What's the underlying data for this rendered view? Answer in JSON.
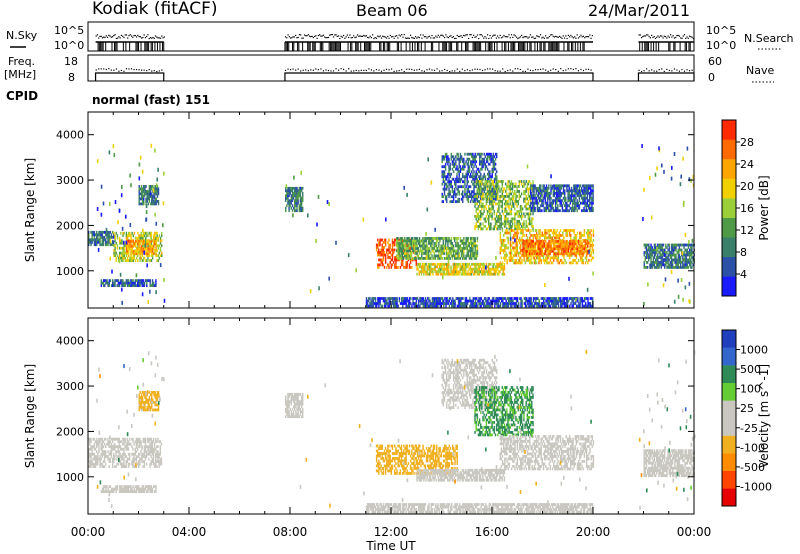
{
  "header": {
    "station": "Kodiak (fitACF)",
    "beam": "Beam 06",
    "date": "24/Mar/2011"
  },
  "top_labels": {
    "nsky": "N.Sky",
    "nsky_hi": "10^5",
    "nsky_lo": "10^0",
    "nsearch": "N.Search",
    "freq_line1": "Freq.",
    "freq_line2": "[MHz]",
    "freq_hi": "18",
    "freq_lo": "8",
    "nave": "Nave",
    "nave_hi": "60",
    "nave_lo": "0",
    "cpid": "CPID",
    "mode": "normal (fast) 151"
  },
  "axes": {
    "ylabel": "Slant Range [km]",
    "xlabel": "Time UT",
    "yticks": [
      "1000",
      "2000",
      "3000",
      "4000"
    ],
    "xticks": [
      "00:00",
      "04:00",
      "08:00",
      "12:00",
      "16:00",
      "20:00",
      "00:00"
    ]
  },
  "colors": {
    "power_ramp": [
      "#1a1aff",
      "#2c4fa8",
      "#3a7f6a",
      "#4f9a46",
      "#9bcf3a",
      "#f0d000",
      "#ffa500",
      "#ff6a00",
      "#ff2a00"
    ],
    "velocity_ramp": [
      "#e60000",
      "#ff4500",
      "#ff8c00",
      "#f0b020",
      "#c9c7c0",
      "#c9c7c0",
      "#66cc33",
      "#2e8b57",
      "#3366cc",
      "#1f3fbf"
    ],
    "ground": "#c9c7c0"
  },
  "chart_data": [
    {
      "type": "heatmap",
      "title": "Power",
      "ylabel": "Slant Range [km]",
      "xlabel": "Time UT",
      "xlim": [
        0,
        24
      ],
      "ylim": [
        180,
        4500
      ],
      "colorbar": {
        "label": "Power [dB]",
        "ticks": [
          "4",
          "8",
          "12",
          "16",
          "20",
          "24",
          "28"
        ],
        "range": [
          0,
          30
        ]
      },
      "echo_regions": [
        {
          "t": [
            0.0,
            1.0
          ],
          "r": [
            1550,
            1850
          ],
          "value": 8
        },
        {
          "t": [
            1.0,
            2.9
          ],
          "r": [
            1200,
            1850
          ],
          "value": 16
        },
        {
          "t": [
            1.5,
            2.7
          ],
          "r": [
            1350,
            1650
          ],
          "value": 22
        },
        {
          "t": [
            2.0,
            2.8
          ],
          "r": [
            2450,
            2850
          ],
          "value": 8
        },
        {
          "t": [
            0.5,
            2.7
          ],
          "r": [
            650,
            800
          ],
          "value": 6
        },
        {
          "t": [
            7.8,
            8.5
          ],
          "r": [
            2300,
            2800
          ],
          "value": 8
        },
        {
          "t": [
            11.4,
            13.0
          ],
          "r": [
            1050,
            1700
          ],
          "value": 26
        },
        {
          "t": [
            12.2,
            15.4
          ],
          "r": [
            1250,
            1700
          ],
          "value": 12
        },
        {
          "t": [
            13.0,
            16.5
          ],
          "r": [
            900,
            1150
          ],
          "value": 18
        },
        {
          "t": [
            14.0,
            16.2
          ],
          "r": [
            2500,
            3600
          ],
          "value": 6
        },
        {
          "t": [
            15.3,
            17.6
          ],
          "r": [
            1900,
            3000
          ],
          "value": 14
        },
        {
          "t": [
            16.3,
            20.0
          ],
          "r": [
            1150,
            1900
          ],
          "value": 20
        },
        {
          "t": [
            17.2,
            19.8
          ],
          "r": [
            1350,
            1650
          ],
          "value": 24
        },
        {
          "t": [
            17.5,
            20.0
          ],
          "r": [
            2300,
            2900
          ],
          "value": 6
        },
        {
          "t": [
            22.0,
            24.0
          ],
          "r": [
            1050,
            1600
          ],
          "value": 8
        },
        {
          "t": [
            11.0,
            20.0
          ],
          "r": [
            200,
            400
          ],
          "value": 4
        }
      ]
    },
    {
      "type": "heatmap",
      "title": "Velocity",
      "ylabel": "Slant Range [km]",
      "xlabel": "Time UT",
      "xlim": [
        0,
        24
      ],
      "ylim": [
        180,
        4500
      ],
      "colorbar": {
        "label": "Velocity [m s^-1]",
        "ticks": [
          "-1000",
          "-500",
          "-100",
          "-25",
          "25",
          "100",
          "500",
          "1000"
        ]
      },
      "echo_regions": [
        {
          "t": [
            0.0,
            2.9
          ],
          "r": [
            1200,
            1850
          ],
          "value": 0
        },
        {
          "t": [
            2.0,
            2.8
          ],
          "r": [
            2450,
            2850
          ],
          "value": -200
        },
        {
          "t": [
            0.5,
            2.7
          ],
          "r": [
            650,
            800
          ],
          "value": 0
        },
        {
          "t": [
            7.8,
            8.5
          ],
          "r": [
            2300,
            2800
          ],
          "value": 0
        },
        {
          "t": [
            11.4,
            14.6
          ],
          "r": [
            1050,
            1700
          ],
          "value": -300
        },
        {
          "t": [
            13.0,
            16.5
          ],
          "r": [
            900,
            1150
          ],
          "value": 0
        },
        {
          "t": [
            14.0,
            16.2
          ],
          "r": [
            2500,
            3600
          ],
          "value": 0
        },
        {
          "t": [
            15.3,
            17.6
          ],
          "r": [
            1900,
            3000
          ],
          "value": 150
        },
        {
          "t": [
            16.3,
            20.0
          ],
          "r": [
            1150,
            1900
          ],
          "value": 0
        },
        {
          "t": [
            22.0,
            24.0
          ],
          "r": [
            1000,
            1600
          ],
          "value": 0
        },
        {
          "t": [
            11.0,
            20.0
          ],
          "r": [
            200,
            400
          ],
          "value": 0
        }
      ]
    }
  ]
}
